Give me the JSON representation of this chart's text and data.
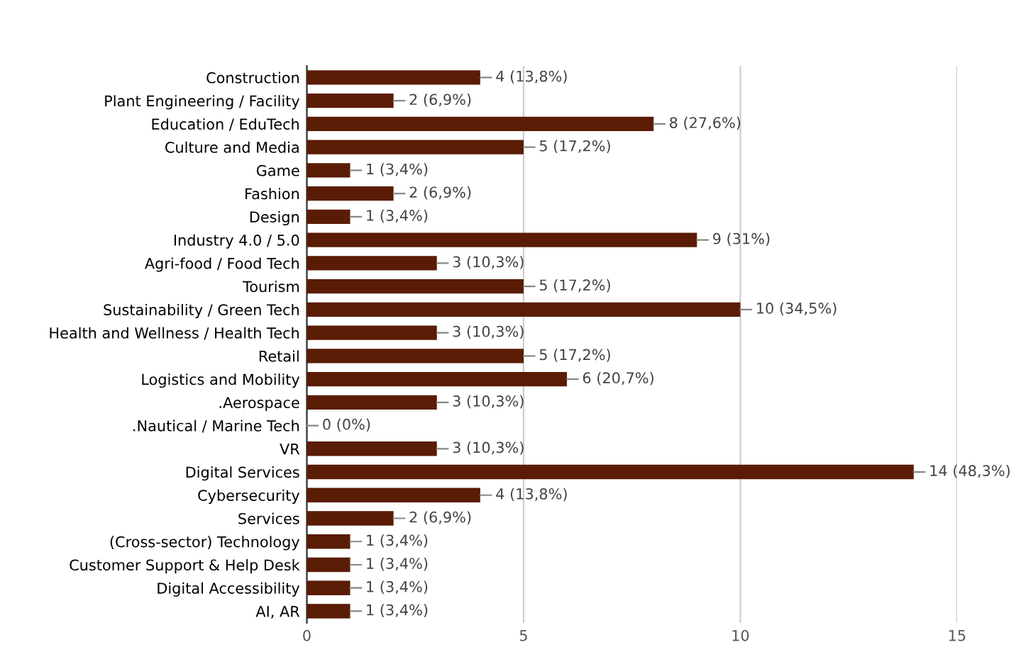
{
  "chart_data": {
    "type": "bar",
    "orientation": "horizontal",
    "categories": [
      "Construction",
      "Plant Engineering / Facility",
      "Education / EduTech",
      "Culture and Media",
      "Game",
      "Fashion",
      "Design",
      "Industry 4.0 / 5.0",
      "Agri-food / Food Tech",
      "Tourism",
      "Sustainability / Green Tech",
      "Health and Wellness / Health Tech",
      "Retail",
      "Logistics and Mobility",
      ".Aerospace",
      ".Nautical / Marine Tech",
      "VR",
      "Digital Services",
      "Cybersecurity",
      "Services",
      "(Cross-sector) Technology",
      "Customer Support & Help Desk",
      "Digital Accessibility",
      "AI, AR"
    ],
    "values": [
      4,
      2,
      8,
      5,
      1,
      2,
      1,
      9,
      3,
      5,
      10,
      3,
      5,
      6,
      3,
      0,
      3,
      14,
      4,
      2,
      1,
      1,
      1,
      1
    ],
    "value_labels": [
      "4 (13,8%)",
      "2 (6,9%)",
      "8 (27,6%)",
      "5 (17,2%)",
      "1 (3,4%)",
      "2 (6,9%)",
      "1 (3,4%)",
      "9 (31%)",
      "3 (10,3%)",
      "5 (17,2%)",
      "10 (34,5%)",
      "3 (10,3%)",
      "5 (17,2%)",
      "6 (20,7%)",
      "3 (10,3%)",
      "0 (0%)",
      "3 (10,3%)",
      "14 (48,3%)",
      "4 (13,8%)",
      "2 (6,9%)",
      "1 (3,4%)",
      "1 (3,4%)",
      "1 (3,4%)",
      "1 (3,4%)"
    ],
    "color": "#5a1c05",
    "xlim": [
      0,
      15
    ],
    "xticks": [
      0,
      5,
      10,
      15
    ],
    "grid": "x"
  }
}
